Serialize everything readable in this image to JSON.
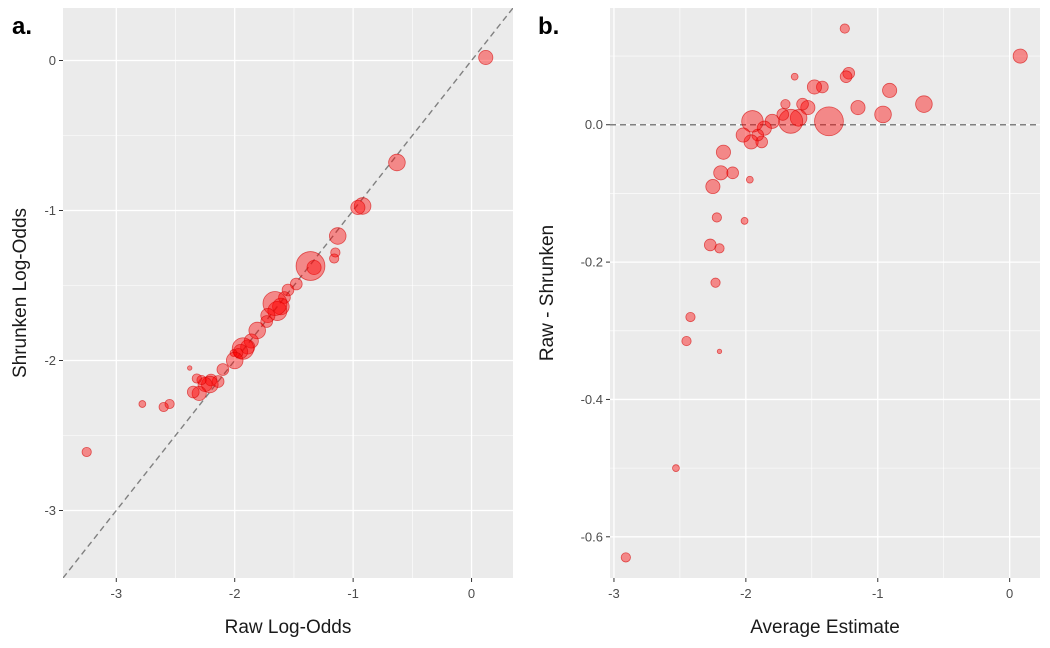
{
  "colors": {
    "panel_background": "#EBEBEB",
    "grid_major": "#FFFFFF",
    "point_fill": "#FF0000",
    "point_stroke": "#D40000",
    "reference_line": "#808080"
  },
  "chart_data": [
    {
      "tag": "a.",
      "type": "scatter",
      "xlabel": "Raw Log-Odds",
      "ylabel": "Shrunken Log-Odds",
      "xlim": [
        -3.45,
        0.35
      ],
      "ylim": [
        -3.45,
        0.35
      ],
      "xticks": [
        -3,
        -2,
        -1,
        0
      ],
      "yticks": [
        -3,
        -2,
        -1,
        0
      ],
      "grid": true,
      "reference_line": {
        "kind": "identity",
        "style": "dashed"
      },
      "marker_size_meaning": "relative sample size",
      "points": [
        {
          "x": 0.12,
          "y": 0.02,
          "size": 5
        },
        {
          "x": -0.63,
          "y": -0.68,
          "size": 6
        },
        {
          "x": -0.92,
          "y": -0.97,
          "size": 6
        },
        {
          "x": -0.96,
          "y": -0.98,
          "size": 5
        },
        {
          "x": -1.13,
          "y": -1.17,
          "size": 6
        },
        {
          "x": -1.15,
          "y": -1.28,
          "size": 3
        },
        {
          "x": -1.16,
          "y": -1.32,
          "size": 3
        },
        {
          "x": -1.33,
          "y": -1.38,
          "size": 5
        },
        {
          "x": -1.36,
          "y": -1.37,
          "size": 11
        },
        {
          "x": -1.48,
          "y": -1.49,
          "size": 4
        },
        {
          "x": -1.55,
          "y": -1.53,
          "size": 4
        },
        {
          "x": -1.58,
          "y": -1.58,
          "size": 4
        },
        {
          "x": -1.61,
          "y": -1.64,
          "size": 6
        },
        {
          "x": -1.64,
          "y": -1.67,
          "size": 7
        },
        {
          "x": -1.66,
          "y": -1.62,
          "size": 9
        },
        {
          "x": -1.72,
          "y": -1.7,
          "size": 5
        },
        {
          "x": -1.73,
          "y": -1.74,
          "size": 4
        },
        {
          "x": -1.81,
          "y": -1.8,
          "size": 6
        },
        {
          "x": -1.86,
          "y": -1.87,
          "size": 5
        },
        {
          "x": -1.89,
          "y": -1.91,
          "size": 5
        },
        {
          "x": -1.93,
          "y": -1.92,
          "size": 8
        },
        {
          "x": -1.95,
          "y": -1.94,
          "size": 5
        },
        {
          "x": -1.97,
          "y": -1.95,
          "size": 3
        },
        {
          "x": -2.01,
          "y": -1.95,
          "size": 2
        },
        {
          "x": -2.0,
          "y": -2.0,
          "size": 6
        },
        {
          "x": -2.1,
          "y": -2.06,
          "size": 4
        },
        {
          "x": -2.14,
          "y": -2.14,
          "size": 4
        },
        {
          "x": -2.2,
          "y": -2.13,
          "size": 4
        },
        {
          "x": -2.21,
          "y": -2.16,
          "size": 6
        },
        {
          "x": -2.25,
          "y": -2.16,
          "size": 5
        },
        {
          "x": -2.28,
          "y": -2.13,
          "size": 3
        },
        {
          "x": -2.3,
          "y": -2.22,
          "size": 5
        },
        {
          "x": -2.32,
          "y": -2.12,
          "size": 3
        },
        {
          "x": -2.35,
          "y": -2.21,
          "size": 4
        },
        {
          "x": -2.38,
          "y": -2.05,
          "size": 1
        },
        {
          "x": -2.55,
          "y": -2.29,
          "size": 3
        },
        {
          "x": -2.6,
          "y": -2.31,
          "size": 3
        },
        {
          "x": -2.78,
          "y": -2.29,
          "size": 2
        },
        {
          "x": -3.25,
          "y": -2.61,
          "size": 3
        }
      ]
    },
    {
      "tag": "b.",
      "type": "scatter",
      "xlabel": "Average Estimate",
      "ylabel": "Raw - Shrunken",
      "xlim": [
        -3.03,
        0.23
      ],
      "ylim": [
        -0.66,
        0.17
      ],
      "xticks": [
        -3,
        -2,
        -1,
        0
      ],
      "yticks": [
        -0.6,
        -0.4,
        -0.2,
        0.0
      ],
      "ytick_labels": [
        "-0.6",
        "-0.4",
        "-0.2",
        "0.0"
      ],
      "grid": true,
      "reference_line": {
        "kind": "horizontal",
        "y": 0,
        "style": "dashed"
      },
      "marker_size_meaning": "relative sample size",
      "points": [
        {
          "x": 0.08,
          "y": 0.1,
          "size": 5
        },
        {
          "x": -0.65,
          "y": 0.03,
          "size": 6
        },
        {
          "x": -0.91,
          "y": 0.05,
          "size": 5
        },
        {
          "x": -0.96,
          "y": 0.015,
          "size": 6
        },
        {
          "x": -1.15,
          "y": 0.025,
          "size": 5
        },
        {
          "x": -1.22,
          "y": 0.075,
          "size": 4
        },
        {
          "x": -1.24,
          "y": 0.07,
          "size": 4
        },
        {
          "x": -1.25,
          "y": 0.14,
          "size": 3
        },
        {
          "x": -1.37,
          "y": 0.005,
          "size": 11
        },
        {
          "x": -1.42,
          "y": 0.055,
          "size": 4
        },
        {
          "x": -1.48,
          "y": 0.055,
          "size": 5
        },
        {
          "x": -1.53,
          "y": 0.025,
          "size": 5
        },
        {
          "x": -1.57,
          "y": 0.03,
          "size": 4
        },
        {
          "x": -1.6,
          "y": 0.01,
          "size": 6
        },
        {
          "x": -1.63,
          "y": 0.07,
          "size": 2
        },
        {
          "x": -1.66,
          "y": 0.005,
          "size": 9
        },
        {
          "x": -1.7,
          "y": 0.03,
          "size": 3
        },
        {
          "x": -1.72,
          "y": 0.015,
          "size": 4
        },
        {
          "x": -1.8,
          "y": 0.005,
          "size": 5
        },
        {
          "x": -1.86,
          "y": -0.005,
          "size": 5
        },
        {
          "x": -1.88,
          "y": -0.025,
          "size": 4
        },
        {
          "x": -1.91,
          "y": -0.015,
          "size": 4
        },
        {
          "x": -1.95,
          "y": 0.005,
          "size": 8
        },
        {
          "x": -1.96,
          "y": -0.025,
          "size": 5
        },
        {
          "x": -1.97,
          "y": -0.08,
          "size": 2
        },
        {
          "x": -2.02,
          "y": -0.015,
          "size": 5
        },
        {
          "x": -2.01,
          "y": -0.14,
          "size": 2
        },
        {
          "x": -2.1,
          "y": -0.07,
          "size": 4
        },
        {
          "x": -2.17,
          "y": -0.04,
          "size": 5
        },
        {
          "x": -2.19,
          "y": -0.07,
          "size": 5
        },
        {
          "x": -2.2,
          "y": -0.18,
          "size": 3
        },
        {
          "x": -2.2,
          "y": -0.33,
          "size": 1
        },
        {
          "x": -2.22,
          "y": -0.135,
          "size": 3
        },
        {
          "x": -2.23,
          "y": -0.23,
          "size": 3
        },
        {
          "x": -2.25,
          "y": -0.09,
          "size": 5
        },
        {
          "x": -2.27,
          "y": -0.175,
          "size": 4
        },
        {
          "x": -2.42,
          "y": -0.28,
          "size": 3
        },
        {
          "x": -2.45,
          "y": -0.315,
          "size": 3
        },
        {
          "x": -2.53,
          "y": -0.5,
          "size": 2
        },
        {
          "x": -2.91,
          "y": -0.63,
          "size": 3
        }
      ]
    }
  ]
}
